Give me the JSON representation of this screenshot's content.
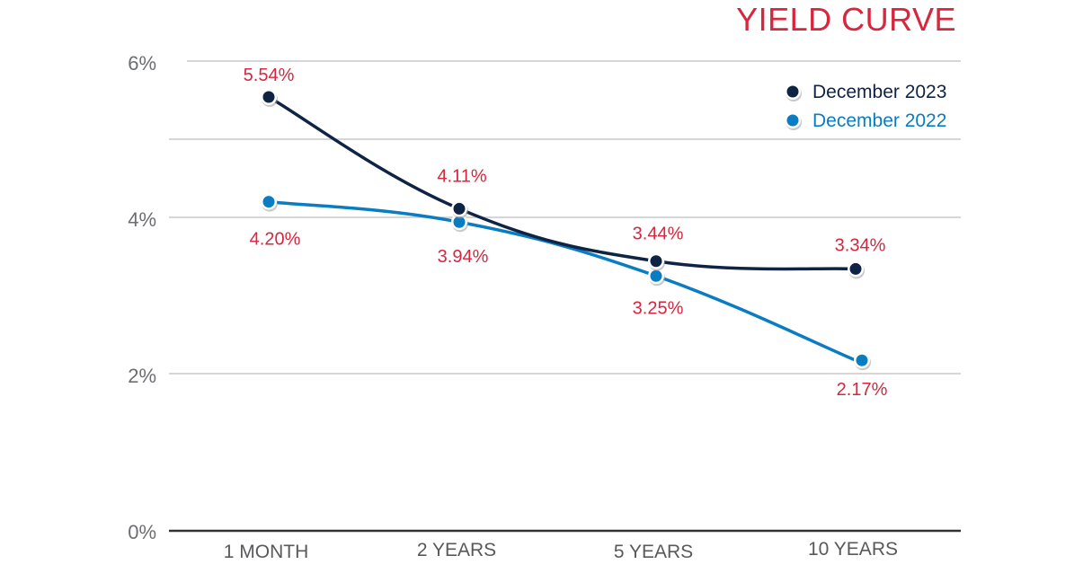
{
  "chart_data": {
    "type": "line",
    "title": "YIELD CURVE",
    "categories": [
      "1 MONTH",
      "2 YEARS",
      "5 YEARS",
      "10 YEARS"
    ],
    "yticks": [
      "0%",
      "2%",
      "4%",
      "6%"
    ],
    "ylim": [
      0,
      6
    ],
    "grid": true,
    "legend_position": "top-right",
    "series": [
      {
        "name": "December 2023",
        "color": "#0f2444",
        "values": [
          5.54,
          4.11,
          3.44,
          3.34
        ],
        "labels": [
          "5.54%",
          "4.11%",
          "3.44%",
          "3.34%"
        ]
      },
      {
        "name": "December 2022",
        "color": "#0a7cc1",
        "values": [
          4.2,
          3.94,
          3.25,
          2.17
        ],
        "labels": [
          "4.20%",
          "3.94%",
          "3.25%",
          "2.17%"
        ]
      }
    ]
  }
}
